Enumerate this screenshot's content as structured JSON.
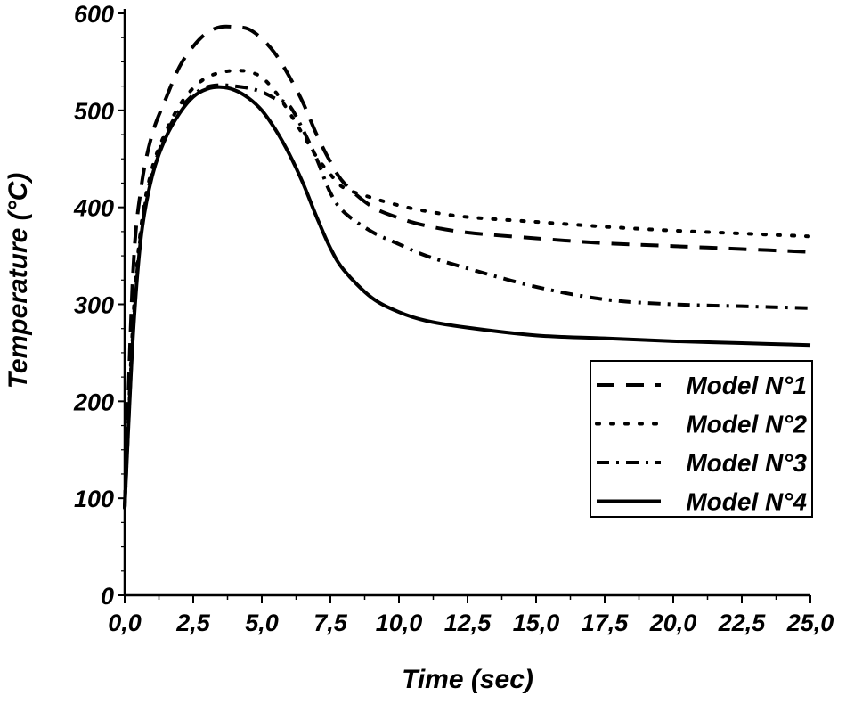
{
  "chart_data": {
    "type": "line",
    "xlabel": "Time (sec)",
    "ylabel": "Temperature (°C)",
    "xlim": [
      0,
      25
    ],
    "ylim": [
      0,
      600
    ],
    "x_ticks": [
      "0,0",
      "2,5",
      "5,0",
      "7,5",
      "10,0",
      "12,5",
      "15,0",
      "17,5",
      "20,0",
      "22,5",
      "25,0"
    ],
    "y_ticks": [
      "0",
      "100",
      "200",
      "300",
      "400",
      "500",
      "600"
    ],
    "grid": false,
    "legend_position": "right",
    "series": [
      {
        "name": "Model N°1",
        "dash": "dashed",
        "x": [
          0,
          0.3,
          0.6,
          1.0,
          1.5,
          2.0,
          2.5,
          3.0,
          3.5,
          4.0,
          4.5,
          5.0,
          5.5,
          6.0,
          6.5,
          7.0,
          7.5,
          8.0,
          9.0,
          10.0,
          11.0,
          12.5,
          15.0,
          17.5,
          20.0,
          22.5,
          25.0
        ],
        "y": [
          90,
          330,
          420,
          475,
          512,
          545,
          566,
          580,
          586,
          586,
          584,
          574,
          558,
          535,
          508,
          475,
          447,
          425,
          401,
          389,
          381,
          374,
          368,
          363,
          360,
          357,
          354
        ]
      },
      {
        "name": "Model N°2",
        "dash": "dotted",
        "x": [
          0,
          0.3,
          0.6,
          1.0,
          1.5,
          2.0,
          2.5,
          3.0,
          3.5,
          4.0,
          4.5,
          5.0,
          5.5,
          6.0,
          6.5,
          7.0,
          7.5,
          8.0,
          9.0,
          10.0,
          11.0,
          12.5,
          15.0,
          17.5,
          20.0,
          22.5,
          25.0
        ],
        "y": [
          90,
          280,
          380,
          440,
          478,
          505,
          523,
          534,
          539,
          541,
          540,
          534,
          519,
          498,
          475,
          452,
          434,
          420,
          410,
          402,
          396,
          390,
          385,
          380,
          376,
          373,
          370
        ]
      },
      {
        "name": "Model N°3",
        "dash": "dashdot",
        "x": [
          0,
          0.3,
          0.6,
          1.0,
          1.5,
          2.0,
          2.5,
          3.0,
          3.5,
          4.0,
          4.5,
          5.0,
          5.5,
          6.0,
          6.5,
          7.0,
          7.5,
          8.0,
          9.0,
          10.0,
          11.0,
          12.5,
          15.0,
          17.5,
          20.0,
          22.5,
          25.0
        ],
        "y": [
          90,
          270,
          375,
          435,
          475,
          500,
          516,
          524,
          526,
          525,
          523,
          519,
          512,
          505,
          480,
          450,
          415,
          395,
          375,
          362,
          350,
          337,
          318,
          305,
          300,
          298,
          296
        ]
      },
      {
        "name": "Model N°4",
        "dash": "solid",
        "x": [
          0,
          0.3,
          0.6,
          1.0,
          1.5,
          2.0,
          2.5,
          3.0,
          3.5,
          4.0,
          4.5,
          5.0,
          5.5,
          6.0,
          6.5,
          7.0,
          7.5,
          8.0,
          9.0,
          10.0,
          11.0,
          12.5,
          15.0,
          17.5,
          20.0,
          22.5,
          25.0
        ],
        "y": [
          90,
          265,
          370,
          432,
          472,
          497,
          514,
          522,
          524,
          521,
          513,
          500,
          480,
          455,
          425,
          390,
          358,
          335,
          307,
          292,
          283,
          276,
          268,
          265,
          262,
          260,
          258
        ]
      }
    ]
  }
}
